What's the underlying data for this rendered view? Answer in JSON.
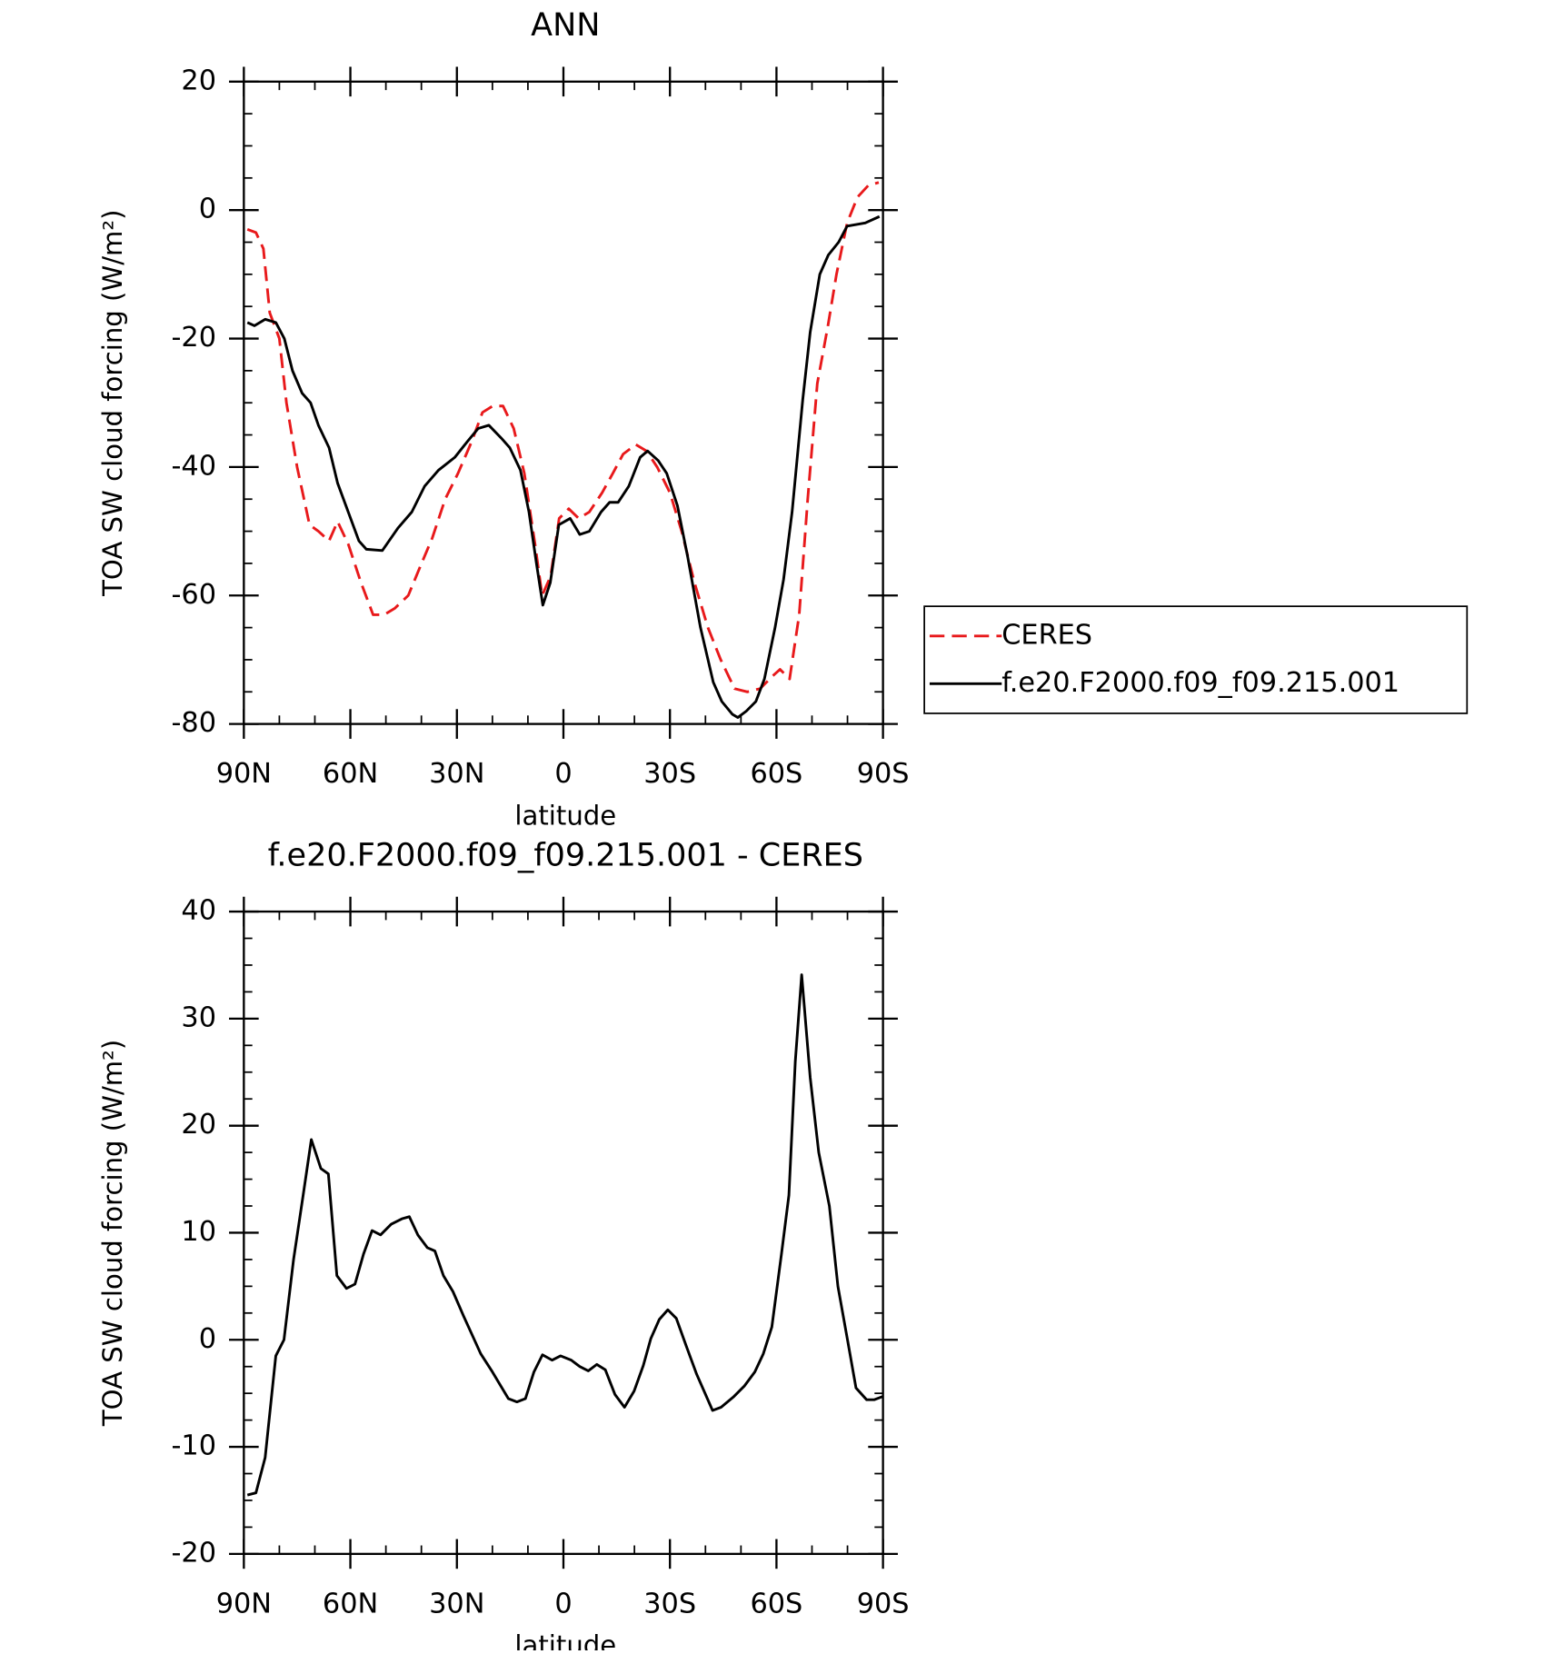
{
  "chart_data": [
    {
      "type": "line",
      "title": "ANN",
      "x_label": "latitude",
      "y_label": "TOA SW cloud forcing (W/m²)",
      "xlim": [
        90,
        -90
      ],
      "xticks": [
        {
          "value": 90,
          "label": "90N"
        },
        {
          "value": 60,
          "label": "60N"
        },
        {
          "value": 30,
          "label": "30N"
        },
        0,
        {
          "value": -30,
          "label": "30S"
        },
        {
          "value": -60,
          "label": "60S"
        },
        {
          "value": -90,
          "label": "90S"
        }
      ],
      "ylim": [
        -80,
        20
      ],
      "yticks": [
        -80,
        -60,
        -40,
        -20,
        0,
        20
      ],
      "legend": "right",
      "series": [
        {
          "name": "CERES",
          "color": "#e8191b",
          "dash": "dashed",
          "x": [
            89,
            86.6,
            84.5,
            82.7,
            80,
            78,
            75,
            71.5,
            69,
            66,
            63.6,
            60.6,
            57,
            53.6,
            50.5,
            47.5,
            43.7,
            40.7,
            36.9,
            33.3,
            29.7,
            25.8,
            22.8,
            19.9,
            17,
            14,
            11,
            8,
            6,
            3.6,
            1.2,
            -1.5,
            -4.3,
            -7.3,
            -10.9,
            -13.9,
            -16.8,
            -20.4,
            -23.4,
            -26.4,
            -30,
            -33.3,
            -36.9,
            -40.7,
            -44.3,
            -48.2,
            -51.8,
            -55.4,
            -59,
            -61,
            -63.7,
            -66.4,
            -68.8,
            -71.5,
            -74.5,
            -76.9,
            -79.9,
            -82.8,
            -85.8,
            -88.8
          ],
          "values": [
            -3,
            -3.5,
            -6,
            -16,
            -20,
            -30,
            -40,
            -49,
            -50,
            -51.5,
            -48.5,
            -52,
            -58,
            -63,
            -63,
            -62,
            -60,
            -56,
            -51,
            -45,
            -41,
            -36,
            -31.5,
            -30.5,
            -30.5,
            -34,
            -41,
            -52,
            -60,
            -57,
            -48,
            -46.5,
            -48,
            -47,
            -44,
            -41,
            -38,
            -36.5,
            -37.5,
            -40,
            -44,
            -50,
            -58,
            -65,
            -70,
            -74.5,
            -75,
            -74.5,
            -72.5,
            -71.5,
            -73,
            -63,
            -45,
            -27,
            -18,
            -10,
            -2,
            2,
            3.8,
            4.3
          ]
        },
        {
          "name": "f.e20.F2000.f09_f09.215.001",
          "color": "#000000",
          "dash": "solid",
          "x": [
            89,
            87,
            84,
            81,
            78.6,
            76.3,
            73.6,
            71.2,
            69,
            66,
            63.6,
            60.6,
            57.6,
            55.5,
            51,
            46.6,
            42.7,
            39.1,
            35.2,
            30.6,
            27,
            24,
            21,
            17.5,
            15.1,
            12.1,
            9.7,
            7.6,
            5.8,
            3.7,
            1.3,
            -1.9,
            -4.6,
            -7.3,
            -10.6,
            -13,
            -15.4,
            -18.4,
            -21.6,
            -23.7,
            -26.7,
            -29.1,
            -32.1,
            -35,
            -38.6,
            -42.2,
            -44.6,
            -47.6,
            -49.1,
            -51.5,
            -54.2,
            -56.6,
            -59.6,
            -62,
            -64.4,
            -67.4,
            -69.5,
            -72.2,
            -74.6,
            -77.5,
            -79.9,
            -85,
            -89
          ],
          "values": [
            -17.5,
            -18,
            -17,
            -17.5,
            -20,
            -25,
            -28.5,
            -30,
            -33.5,
            -37,
            -42.5,
            -47,
            -51.5,
            -52.8,
            -53,
            -49.5,
            -47,
            -43,
            -40.5,
            -38.5,
            -36,
            -34,
            -33.5,
            -35.5,
            -37,
            -40.5,
            -47,
            -55,
            -61.5,
            -58,
            -49,
            -48,
            -50.5,
            -50,
            -47,
            -45.5,
            -45.5,
            -43,
            -38.5,
            -37.5,
            -39,
            -41,
            -46,
            -54,
            -65,
            -73.5,
            -76.5,
            -78.5,
            -79,
            -78,
            -76.5,
            -73,
            -65,
            -57.5,
            -47,
            -29.5,
            -19,
            -10,
            -7,
            -5,
            -2.5,
            -2,
            -1
          ]
        }
      ]
    },
    {
      "type": "line",
      "title": "f.e20.F2000.f09_f09.215.001 - CERES",
      "x_label": "latitude",
      "y_label": "TOA SW cloud forcing (W/m²)",
      "xlim": [
        90,
        -90
      ],
      "xticks": [
        {
          "value": 90,
          "label": "90N"
        },
        {
          "value": 60,
          "label": "60N"
        },
        {
          "value": 30,
          "label": "30N"
        },
        0,
        {
          "value": -30,
          "label": "30S"
        },
        {
          "value": -60,
          "label": "60S"
        },
        {
          "value": -90,
          "label": "90S"
        }
      ],
      "ylim": [
        -20,
        40
      ],
      "yticks": [
        -20,
        -10,
        0,
        10,
        20,
        30,
        40
      ],
      "x": [
        89,
        86.6,
        84,
        81,
        78.7,
        76,
        73.3,
        71,
        68.3,
        66.2,
        63.8,
        61.1,
        58.7,
        56.3,
        53.9,
        51.5,
        48.5,
        45.5,
        43.4,
        41,
        38.3,
        36.2,
        33.8,
        31.1,
        28.1,
        23.3,
        20,
        15.5,
        13.1,
        10.7,
        8.3,
        5.9,
        3.2,
        0.8,
        -2.2,
        -4.6,
        -7,
        -9.4,
        -11.8,
        -14.5,
        -17.2,
        -19.9,
        -22.5,
        -24.6,
        -27,
        -29.4,
        -31.8,
        -34.5,
        -37.5,
        -42,
        -44.4,
        -48,
        -51,
        -53.9,
        -56.3,
        -58.7,
        -61.4,
        -63.5,
        -65.3,
        -67.1,
        -69.5,
        -71.9,
        -74.9,
        -77.3,
        -80,
        -82.4,
        -85.4,
        -87.5,
        -89.9
      ],
      "series": [
        {
          "color": "#000000",
          "dash": "solid",
          "values": [
            -14.5,
            -14.3,
            -11,
            -1.5,
            0,
            7.5,
            13.5,
            18.7,
            16,
            15.5,
            6,
            4.8,
            5.2,
            8,
            10.2,
            9.8,
            10.8,
            11.3,
            11.5,
            9.8,
            8.6,
            8.3,
            6,
            4.5,
            2.2,
            -1.3,
            -3,
            -5.5,
            -5.8,
            -5.5,
            -3,
            -1.4,
            -1.9,
            -1.5,
            -1.9,
            -2.5,
            -2.9,
            -2.3,
            -2.8,
            -5.1,
            -6.3,
            -4.8,
            -2.4,
            0.1,
            1.9,
            2.8,
            2,
            -0.5,
            -3.2,
            -6.6,
            -6.3,
            -5.3,
            -4.3,
            -3,
            -1.3,
            1.2,
            8,
            13.5,
            26,
            34.1,
            24.5,
            17.5,
            12.5,
            5,
            0,
            -4.5,
            -5.6,
            -5.6,
            -5.3
          ]
        }
      ]
    }
  ]
}
